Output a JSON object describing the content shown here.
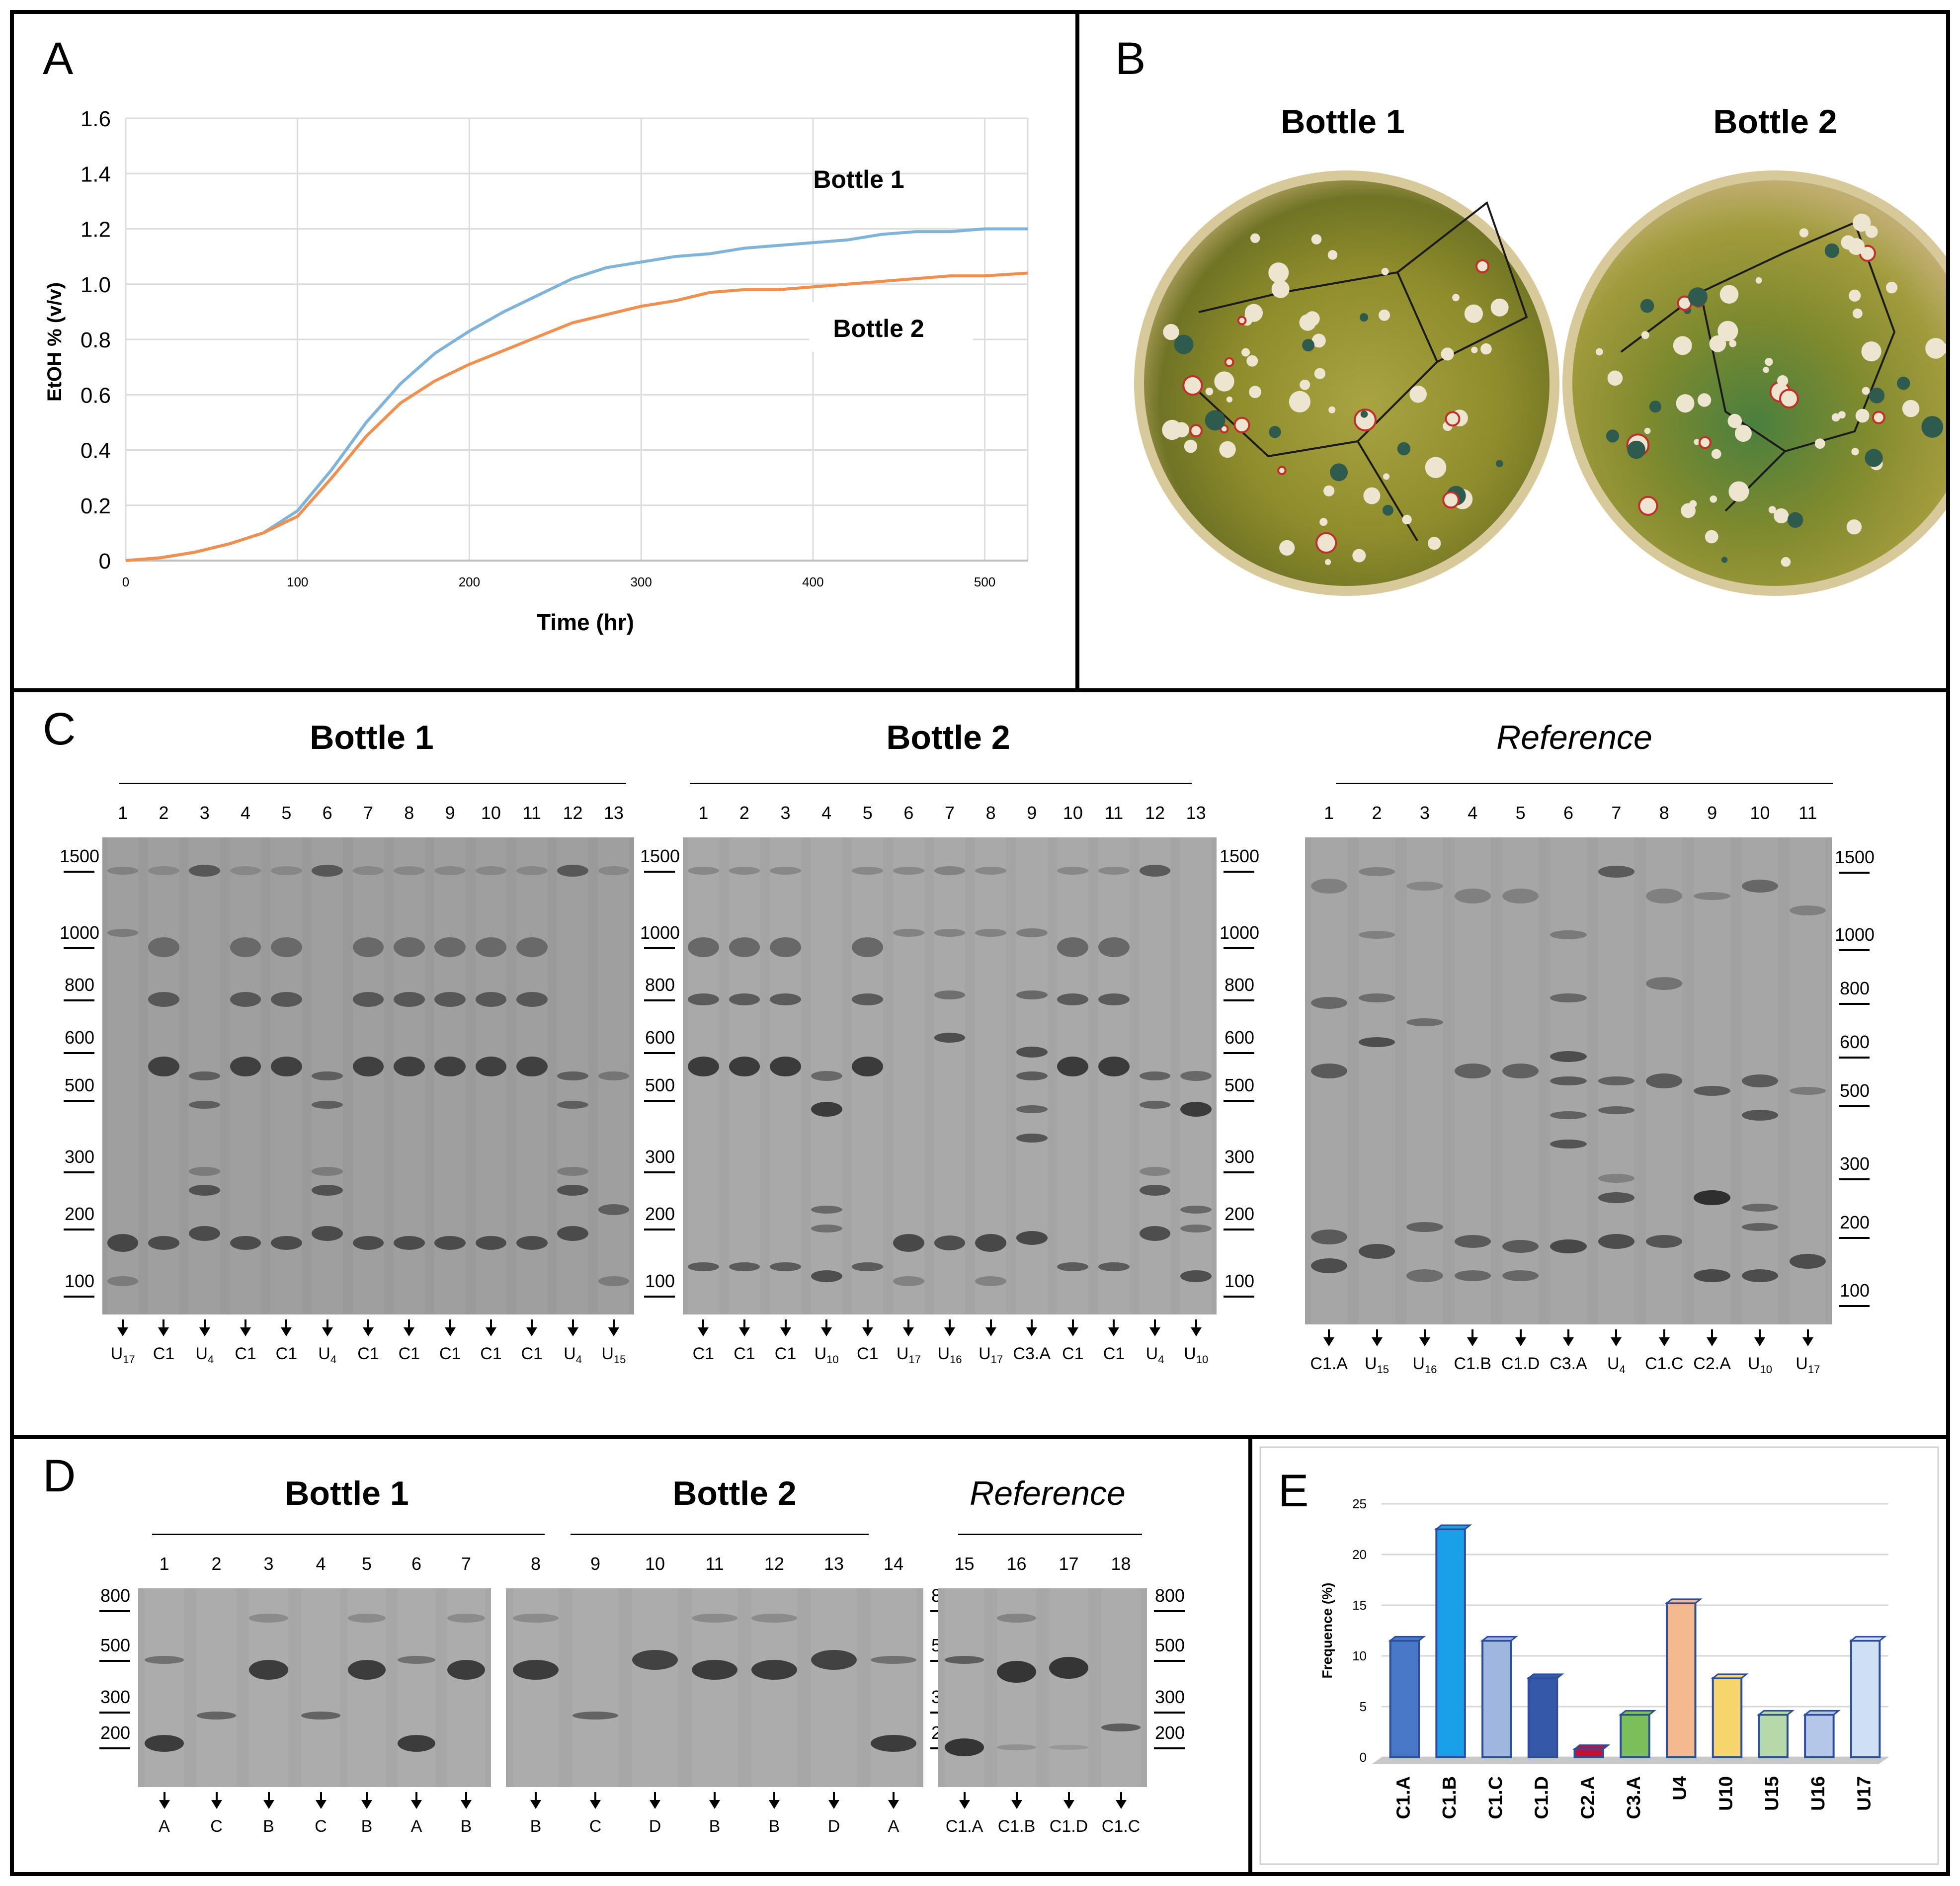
{
  "figure": {
    "panel_labels": {
      "a": "A",
      "b": "B",
      "c": "C",
      "d": "D",
      "e": "E"
    },
    "panel_a": {
      "chart_data": {
        "type": "line",
        "title": "",
        "xlabel": "Time (hr)",
        "ylabel": "EtOH % (v/v)",
        "xlim": [
          0,
          525
        ],
        "ylim": [
          0,
          1.6
        ],
        "xticks": [
          "0",
          "100",
          "200",
          "300",
          "400",
          "500"
        ],
        "yticks": [
          "0",
          "0.2",
          "0.4",
          "0.6",
          "0.8",
          "1.0",
          "1.2",
          "1.4",
          "1.6"
        ],
        "grid": true,
        "series": [
          {
            "name": "Bottle 1",
            "color": "#7fb3d8",
            "x": [
              0,
              20,
              40,
              60,
              80,
              100,
              120,
              140,
              160,
              180,
              200,
              220,
              240,
              260,
              280,
              300,
              320,
              340,
              360,
              380,
              400,
              420,
              440,
              460,
              480,
              500,
              525
            ],
            "y": [
              0,
              0.01,
              0.03,
              0.06,
              0.1,
              0.18,
              0.33,
              0.5,
              0.64,
              0.75,
              0.83,
              0.9,
              0.96,
              1.02,
              1.06,
              1.08,
              1.1,
              1.11,
              1.13,
              1.14,
              1.15,
              1.16,
              1.18,
              1.19,
              1.19,
              1.2,
              1.2
            ]
          },
          {
            "name": "Bottle 2",
            "color": "#ef9050",
            "x": [
              0,
              20,
              40,
              60,
              80,
              100,
              120,
              140,
              160,
              180,
              200,
              220,
              240,
              260,
              280,
              300,
              320,
              340,
              360,
              380,
              400,
              420,
              440,
              460,
              480,
              500,
              525
            ],
            "y": [
              0,
              0.01,
              0.03,
              0.06,
              0.1,
              0.16,
              0.3,
              0.45,
              0.57,
              0.65,
              0.71,
              0.76,
              0.81,
              0.86,
              0.89,
              0.92,
              0.94,
              0.97,
              0.98,
              0.98,
              0.99,
              1.0,
              1.01,
              1.02,
              1.03,
              1.03,
              1.04
            ]
          }
        ],
        "annotations": [
          "Bottle 1",
          "Bottle 2"
        ]
      }
    },
    "panel_b": {
      "titles": [
        "Bottle 1",
        "Bottle 2"
      ]
    },
    "panel_c": {
      "titles": [
        "Bottle 1",
        "Bottle 2",
        "Reference"
      ],
      "ladder": [
        "1500",
        "1000",
        "800",
        "600",
        "500",
        "300",
        "200",
        "100"
      ],
      "gel1": {
        "lanes": [
          "1",
          "2",
          "3",
          "4",
          "5",
          "6",
          "7",
          "8",
          "9",
          "10",
          "11",
          "12",
          "13"
        ],
        "ids": [
          {
            "t": "U",
            "s": "17"
          },
          {
            "t": "C1",
            "s": ""
          },
          {
            "t": "U",
            "s": "4"
          },
          {
            "t": "C1",
            "s": ""
          },
          {
            "t": "C1",
            "s": ""
          },
          {
            "t": "U",
            "s": "4"
          },
          {
            "t": "C1",
            "s": ""
          },
          {
            "t": "C1",
            "s": ""
          },
          {
            "t": "C1",
            "s": ""
          },
          {
            "t": "C1",
            "s": ""
          },
          {
            "t": "C1",
            "s": ""
          },
          {
            "t": "U",
            "s": "4"
          },
          {
            "t": "U",
            "s": "15"
          }
        ]
      },
      "gel2": {
        "lanes": [
          "1",
          "2",
          "3",
          "4",
          "5",
          "6",
          "7",
          "8",
          "9",
          "10",
          "11",
          "12",
          "13"
        ],
        "ids": [
          {
            "t": "C1",
            "s": ""
          },
          {
            "t": "C1",
            "s": ""
          },
          {
            "t": "C1",
            "s": ""
          },
          {
            "t": "U",
            "s": "10"
          },
          {
            "t": "C1",
            "s": ""
          },
          {
            "t": "U",
            "s": "17"
          },
          {
            "t": "U",
            "s": "16"
          },
          {
            "t": "U",
            "s": "17"
          },
          {
            "t": "C3.A",
            "s": ""
          },
          {
            "t": "C1",
            "s": ""
          },
          {
            "t": "C1",
            "s": ""
          },
          {
            "t": "U",
            "s": "4"
          },
          {
            "t": "U",
            "s": "10"
          }
        ]
      },
      "gel3": {
        "lanes": [
          "1",
          "2",
          "3",
          "4",
          "5",
          "6",
          "7",
          "8",
          "9",
          "10",
          "11"
        ],
        "ids": [
          {
            "t": "C1.A",
            "s": ""
          },
          {
            "t": "U",
            "s": "15"
          },
          {
            "t": "U",
            "s": "16"
          },
          {
            "t": "C1.B",
            "s": ""
          },
          {
            "t": "C1.D",
            "s": ""
          },
          {
            "t": "C3.A",
            "s": ""
          },
          {
            "t": "U",
            "s": "4"
          },
          {
            "t": "C1.C",
            "s": ""
          },
          {
            "t": "C2.A",
            "s": ""
          },
          {
            "t": "U",
            "s": "10"
          },
          {
            "t": "U",
            "s": "17"
          }
        ]
      }
    },
    "panel_d": {
      "titles": [
        "Bottle 1",
        "Bottle 2",
        "Reference"
      ],
      "ladder": [
        "800",
        "500",
        "300",
        "200"
      ],
      "lanes": [
        "1",
        "2",
        "3",
        "4",
        "5",
        "6",
        "7",
        "8",
        "9",
        "10",
        "11",
        "12",
        "13",
        "14",
        "15",
        "16",
        "17",
        "18"
      ],
      "ids": [
        "A",
        "C",
        "B",
        "C",
        "B",
        "A",
        "B",
        "B",
        "C",
        "D",
        "B",
        "B",
        "D",
        "A",
        "C1.A",
        "C1.B",
        "C1.D",
        "C1.C"
      ]
    },
    "panel_e": {
      "chart_data": {
        "type": "bar",
        "title": "",
        "xlabel": "",
        "ylabel": "Frequence (%)",
        "ylim": [
          0,
          25
        ],
        "yticks": [
          "0",
          "5",
          "10",
          "15",
          "20",
          "25"
        ],
        "categories": [
          "C1.A",
          "C1.B",
          "C1.C",
          "C1.D",
          "C2.A",
          "C3.A",
          "U4",
          "U10",
          "U15",
          "U16",
          "U17"
        ],
        "values": [
          11.5,
          22.5,
          11.5,
          7.8,
          0.8,
          4.2,
          15.2,
          7.8,
          4.2,
          4.2,
          11.5
        ],
        "colors": [
          "#4a78c8",
          "#1aa0e8",
          "#9fb6df",
          "#3559a8",
          "#c8102e",
          "#7abf5a",
          "#f5b98e",
          "#f6d66c",
          "#b5d9a8",
          "#b4c7e8",
          "#cfe0f5"
        ]
      }
    }
  }
}
